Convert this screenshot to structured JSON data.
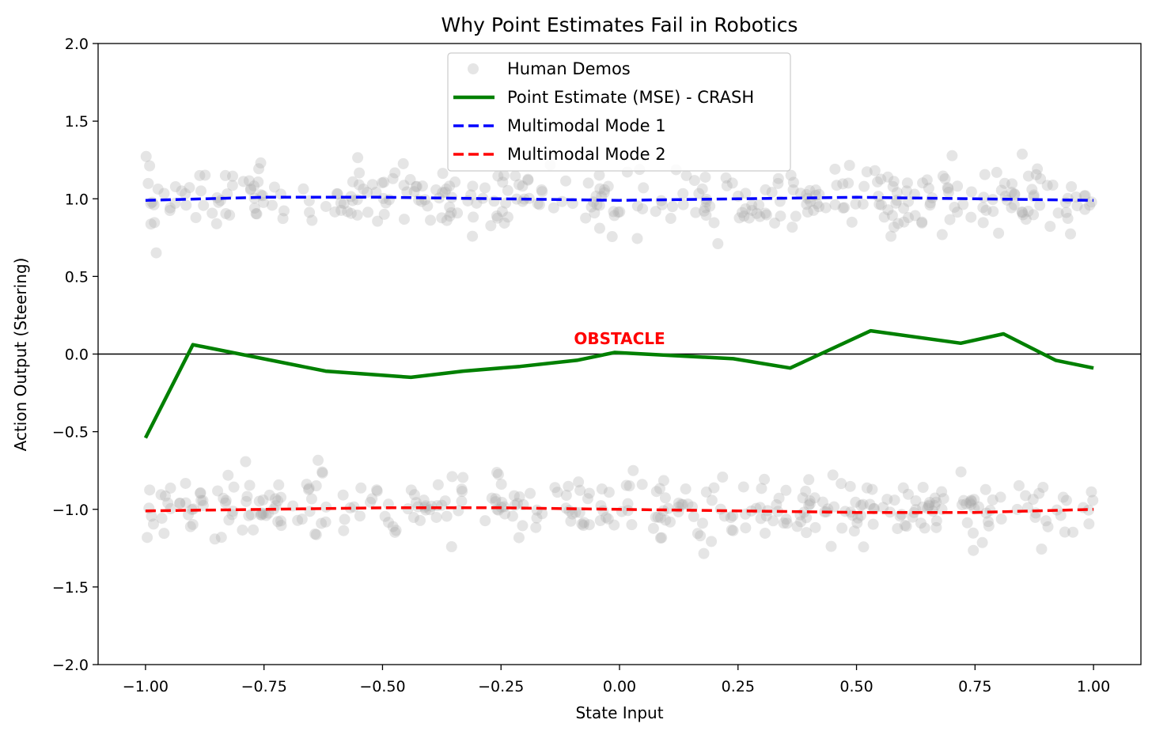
{
  "chart_data": {
    "type": "line",
    "title": "Why Point Estimates Fail in Robotics",
    "xlabel": "State Input",
    "ylabel": "Action Output (Steering)",
    "xlim": [
      -1.1,
      1.1
    ],
    "ylim": [
      -2.0,
      2.0
    ],
    "xticks": [
      -1.0,
      -0.75,
      -0.5,
      -0.25,
      0.0,
      0.25,
      0.5,
      0.75,
      1.0
    ],
    "xtick_labels": [
      "−1.00",
      "−0.75",
      "−0.50",
      "−0.25",
      "0.00",
      "0.25",
      "0.50",
      "0.75",
      "1.00"
    ],
    "yticks": [
      -2.0,
      -1.5,
      -1.0,
      -0.5,
      0.0,
      0.5,
      1.0,
      1.5,
      2.0
    ],
    "ytick_labels": [
      "−2.0",
      "−1.5",
      "−1.0",
      "−0.5",
      "0.0",
      "0.5",
      "1.0",
      "1.5",
      "2.0"
    ],
    "grid": false,
    "legend_position": "upper-center",
    "hline": {
      "y": 0.0,
      "color": "#000000"
    },
    "annotation": {
      "text": "OBSTACLE",
      "x": 0.0,
      "y": 0.1,
      "color": "#ff0000"
    },
    "series": [
      {
        "name": "Human Demos",
        "type": "scatter",
        "color": "#aaaaaa",
        "opacity": 0.3,
        "clusters": [
          {
            "center": 1.0,
            "spread": 0.1,
            "count": 360
          },
          {
            "center": -1.0,
            "spread": 0.1,
            "count": 360
          }
        ]
      },
      {
        "name": "Point Estimate (MSE) - CRASH",
        "type": "line",
        "color": "#008000",
        "style": "solid",
        "x": [
          -1.0,
          -0.9,
          -0.62,
          -0.44,
          -0.33,
          -0.21,
          -0.09,
          -0.01,
          0.24,
          0.36,
          0.53,
          0.72,
          0.81,
          0.92,
          1.0
        ],
        "y": [
          -0.54,
          0.06,
          -0.11,
          -0.15,
          -0.11,
          -0.08,
          -0.04,
          0.01,
          -0.03,
          -0.09,
          0.15,
          0.07,
          0.13,
          -0.04,
          -0.09
        ]
      },
      {
        "name": "Multimodal Mode 1",
        "type": "line",
        "color": "#0000ff",
        "style": "dashed",
        "x": [
          -1.0,
          -0.75,
          -0.5,
          -0.25,
          0.0,
          0.25,
          0.5,
          0.75,
          1.0
        ],
        "y": [
          0.99,
          1.01,
          1.01,
          1.0,
          0.99,
          1.0,
          1.01,
          1.0,
          0.99
        ]
      },
      {
        "name": "Multimodal Mode 2",
        "type": "line",
        "color": "#ff0000",
        "style": "dashed",
        "x": [
          -1.0,
          -0.75,
          -0.5,
          -0.25,
          0.0,
          0.25,
          0.5,
          0.75,
          1.0
        ],
        "y": [
          -1.01,
          -1.0,
          -0.99,
          -0.99,
          -1.0,
          -1.01,
          -1.02,
          -1.02,
          -1.0
        ]
      }
    ]
  }
}
